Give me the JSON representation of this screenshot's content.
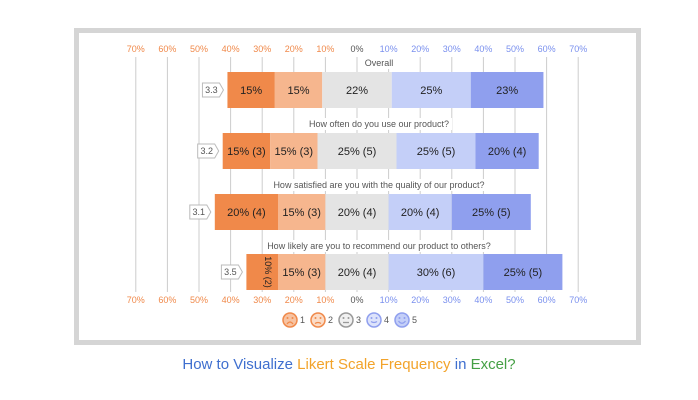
{
  "colors": {
    "1": "#f0894a",
    "2": "#f6b68e",
    "3": "#e4e4e4",
    "4": "#c4cff8",
    "5": "#8f9fee",
    "tick_neg": "#f0894a",
    "tick_zero": "#555555",
    "tick_pos": "#7a90ee",
    "grid": "#cccccc"
  },
  "chart_data": {
    "type": "bar",
    "orientation": "horizontal",
    "stacked": "diverging",
    "xlim": [
      -70,
      70
    ],
    "x_unit": "%",
    "ticks": [
      "70%",
      "60%",
      "50%",
      "40%",
      "30%",
      "20%",
      "10%",
      "0%",
      "10%",
      "20%",
      "30%",
      "40%",
      "50%",
      "60%",
      "70%"
    ],
    "tick_values": [
      -70,
      -60,
      -50,
      -40,
      -30,
      -20,
      -10,
      0,
      10,
      20,
      30,
      40,
      50,
      60,
      70
    ],
    "grid": true,
    "legend": {
      "placement": "bottom-center",
      "entries": [
        {
          "label": "1",
          "icon": "very-sad-face-icon"
        },
        {
          "label": "2",
          "icon": "sad-face-icon"
        },
        {
          "label": "3",
          "icon": "neutral-face-icon"
        },
        {
          "label": "4",
          "icon": "happy-face-icon"
        },
        {
          "label": "5",
          "icon": "very-happy-face-icon"
        }
      ]
    },
    "questions": [
      {
        "title": "Overall",
        "average": "3.3",
        "values": [
          15,
          15,
          22,
          25,
          23
        ],
        "labels": [
          "15%",
          "15%",
          "22%",
          "25%",
          "23%"
        ]
      },
      {
        "title": "How often do you use our product?",
        "average": "3.2",
        "values": [
          15,
          15,
          25,
          25,
          20
        ],
        "labels": [
          "15% (3)",
          "15% (3)",
          "25% (5)",
          "25% (5)",
          "20% (4)"
        ]
      },
      {
        "title": "How satisfied are you with the quality of our product?",
        "average": "3.1",
        "values": [
          20,
          15,
          20,
          20,
          25
        ],
        "labels": [
          "20% (4)",
          "15% (3)",
          "20% (4)",
          "20% (4)",
          "25% (5)"
        ]
      },
      {
        "title": "How likely are you to recommend our product to others?",
        "average": "3.5",
        "values": [
          10,
          15,
          20,
          30,
          25
        ],
        "labels": [
          "10% (2)",
          "15% (3)",
          "20% (4)",
          "30% (6)",
          "25% (5)"
        ]
      }
    ]
  },
  "caption": {
    "part1": "How to Visualize ",
    "part2": "Likert Scale Frequency",
    "part3": " in ",
    "part4": "Excel?",
    "color1": "#3f6fcf",
    "color2": "#f2a32a",
    "color3": "#3f6fcf",
    "color4": "#45a045"
  }
}
